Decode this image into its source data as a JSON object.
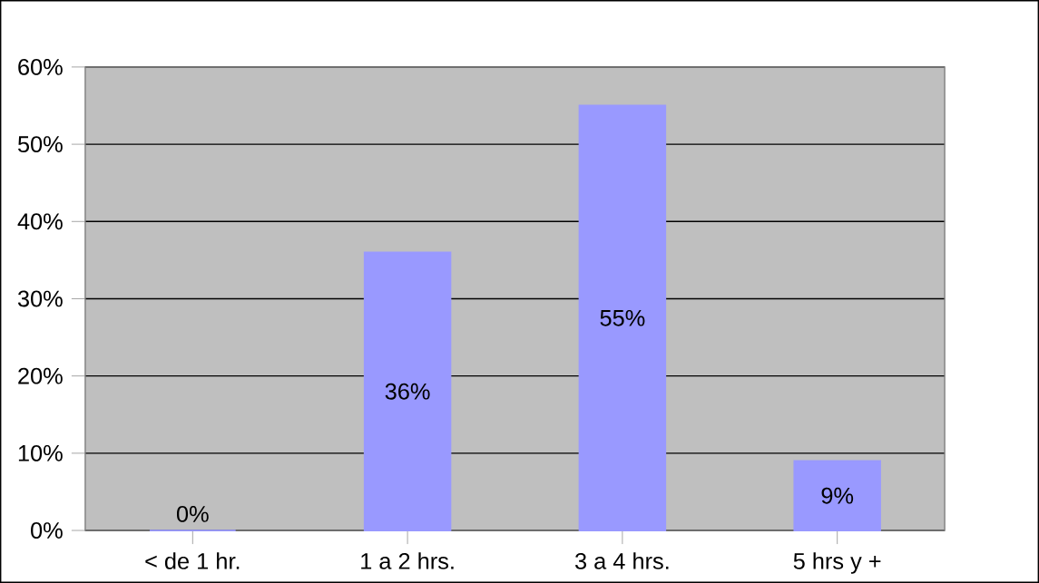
{
  "chart_data": {
    "type": "bar",
    "categories": [
      "< de 1 hr.",
      "1 a 2 hrs.",
      "3 a 4 hrs.",
      "5 hrs y +"
    ],
    "values": [
      0,
      36,
      55,
      9
    ],
    "value_labels": [
      "0%",
      "36%",
      "55%",
      "9%"
    ],
    "color": "#9999ff",
    "ylim": [
      0,
      60
    ],
    "yticks": [
      {
        "value": 0,
        "label": "0%"
      },
      {
        "value": 10,
        "label": "10%"
      },
      {
        "value": 20,
        "label": "20%"
      },
      {
        "value": 30,
        "label": "30%"
      },
      {
        "value": 40,
        "label": "40%"
      },
      {
        "value": 50,
        "label": "50%"
      },
      {
        "value": 60,
        "label": "60%"
      }
    ],
    "grid": "y"
  }
}
